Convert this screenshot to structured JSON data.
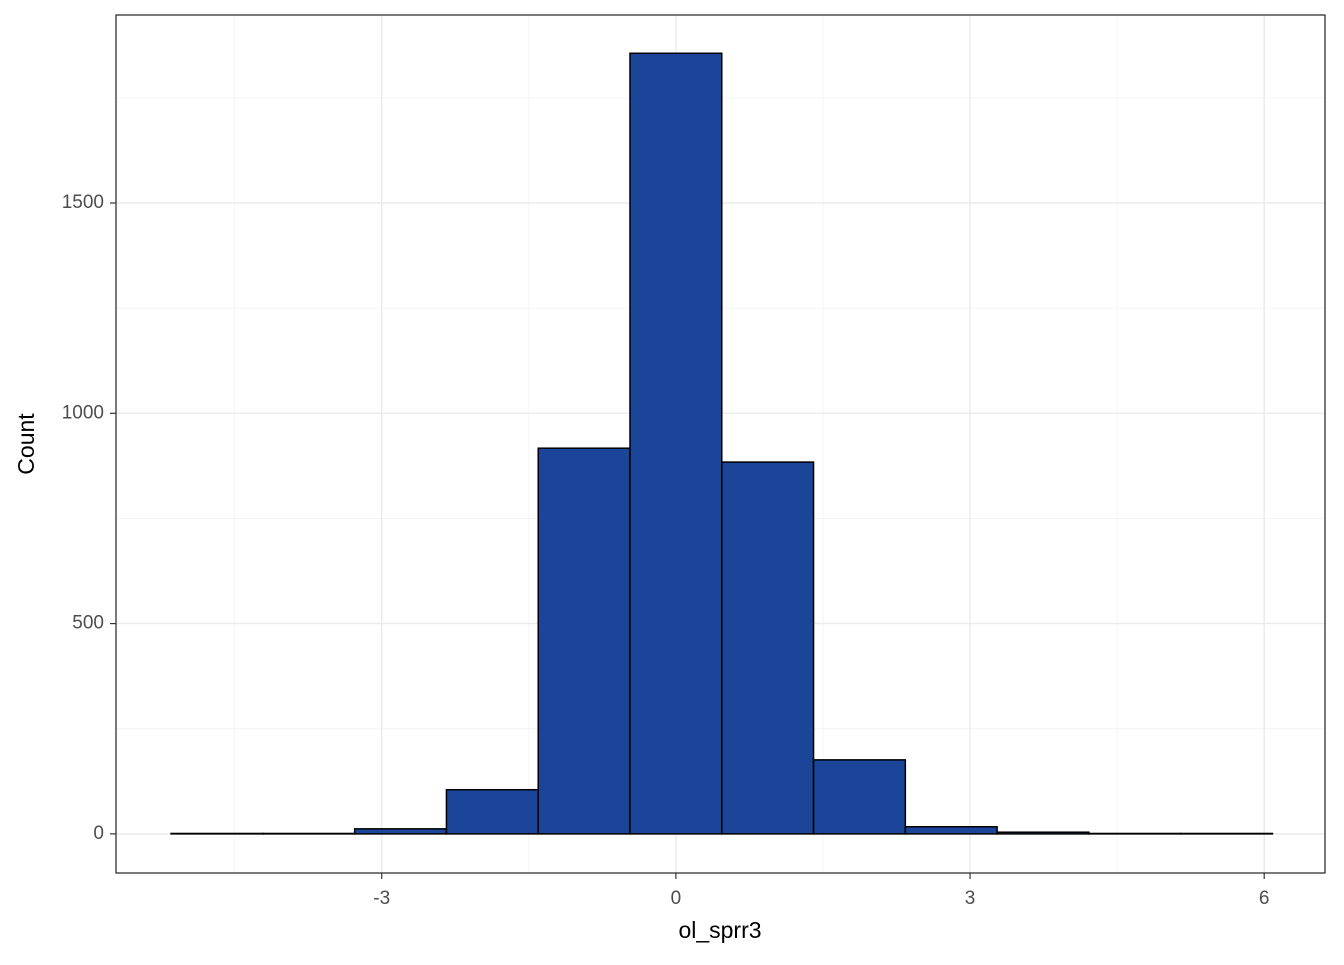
{
  "chart_data": {
    "type": "histogram",
    "x_label": "ol_sprr3",
    "y_label": "Count",
    "bins": [
      -5.148,
      -4.212,
      -3.276,
      -2.34,
      -1.404,
      -0.468,
      0.468,
      1.404,
      2.34,
      3.276,
      4.212,
      5.148,
      6.084
    ],
    "values": [
      1,
      1,
      12,
      105,
      917,
      1856,
      884,
      176,
      17,
      4,
      1,
      1
    ],
    "color": "#1a4599",
    "xlim": [
      -5.71,
      6.62
    ],
    "ylim": [
      -93,
      1947
    ],
    "xticks": [
      -3,
      0,
      3,
      6
    ],
    "yticks": [
      0,
      500,
      1000,
      1500
    ],
    "grid": true
  }
}
